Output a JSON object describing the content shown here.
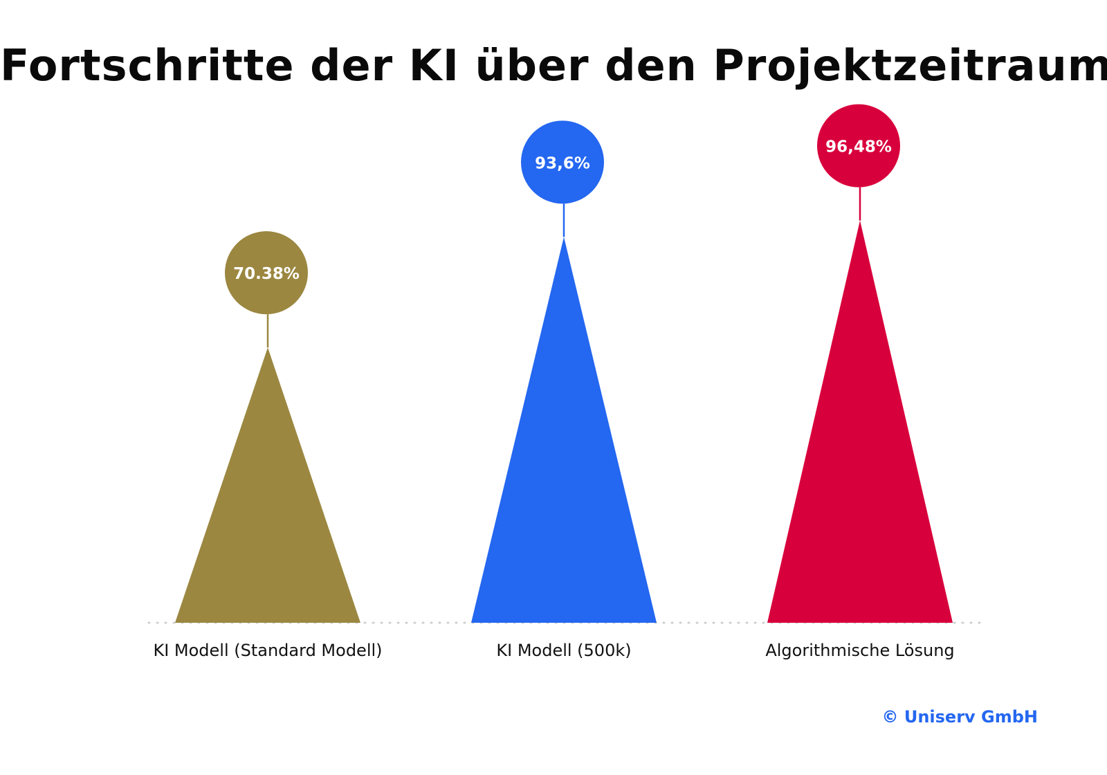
{
  "title": {
    "text": "Fortschritte der KI über den Projektzeitraum",
    "dot": "."
  },
  "copyright": "© Uniserv GmbH",
  "colors": {
    "title": "#0a0a0a",
    "accent": "#2467f0",
    "baseline": "#cfcfcf",
    "label_text": "#111111",
    "value_text": "#ffffff"
  },
  "chart_data": {
    "type": "bar",
    "bar_shape": "triangle",
    "categories": [
      "KI Modell (Standard Modell)",
      "KI Modell (500k)",
      "Algorithmische Lösung"
    ],
    "values": [
      70.38,
      93.6,
      96.48
    ],
    "value_labels": [
      "70.38%",
      "93,6%",
      "96,48%"
    ],
    "series_colors": [
      "#9b8740",
      "#2467f0",
      "#d8003c"
    ],
    "ylim": [
      0,
      100
    ],
    "grid": false,
    "legend": "none",
    "baseline_style": "dotted"
  }
}
